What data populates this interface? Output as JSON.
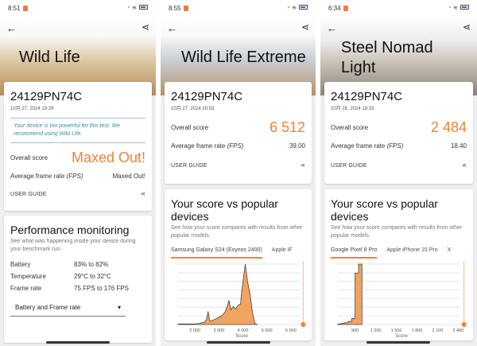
{
  "panels": [
    {
      "time": "8:51",
      "title": "Wild Life",
      "device": "24129PN74C",
      "date": "10月 27, 2024 19:29",
      "notice": "Your device is too powerful for this test. We recommend using Wild Life.",
      "overall_label": "Overall score",
      "overall_value": "Maxed Out!",
      "fps_label": "Average frame rate",
      "fps_unit": "(FPS)",
      "fps_value": "Maxed Out!",
      "user_guide": "USER GUIDE",
      "perf": {
        "title": "Performance monitoring",
        "subtitle": "See what was happening inside your device during your benchmark run.",
        "rows": [
          {
            "label": "Battery",
            "value": "83% to 82%"
          },
          {
            "label": "Temperature",
            "value": "29°C to 32°C"
          },
          {
            "label": "Frame rate",
            "value": "75 FPS to 176 FPS"
          }
        ],
        "dropdown": "Battery and Frame rate"
      }
    },
    {
      "time": "8:55",
      "title": "Wild Life Extreme",
      "device": "24129PN74C",
      "date": "10月 27, 2024 20:53",
      "overall_label": "Overall score",
      "overall_value": "6 512",
      "fps_label": "Average frame rate",
      "fps_unit": "(FPS)",
      "fps_value": "39.00",
      "user_guide": "USER GUIDE",
      "compare": {
        "title": "Your score vs popular devices",
        "subtitle": "See how your score compares with results from other popular models.",
        "tabs": [
          "Samsung Galaxy S24 (Exynos 2400)",
          "Apple iF"
        ],
        "xlabel": "Score"
      }
    },
    {
      "time": "6:34",
      "title": "Steel Nomad Light",
      "device": "24129PN74C",
      "date": "10月 28, 2024 18:33",
      "overall_label": "Overall score",
      "overall_value": "2 484",
      "fps_label": "Average frame rate",
      "fps_unit": "(FPS)",
      "fps_value": "18.40",
      "user_guide": "USER GUIDE",
      "compare": {
        "title": "Your score vs popular devices",
        "subtitle": "See how your score compares with results from other popular models.",
        "tabs": [
          "Google Pixel 8 Pro",
          "Apple iPhone 15 Pro",
          "X"
        ],
        "xlabel": "Score"
      }
    }
  ],
  "colors": {
    "accent": "#f08236",
    "notice": "#3a8c97"
  },
  "chart_data": [
    {
      "type": "area",
      "xlabel": "Score",
      "xlim": [
        1300,
        6600
      ],
      "ticks": [
        "2 000",
        "3 000",
        "4 000",
        "5 000",
        "6 000"
      ],
      "tick_values": [
        2000,
        3000,
        4000,
        5000,
        6000
      ],
      "marker": 6512,
      "x": [
        1300,
        1800,
        2000,
        2200,
        2400,
        2480,
        2550,
        2620,
        2700,
        2900,
        3100,
        3250,
        3350,
        3420,
        3500,
        3600,
        3700,
        3800,
        3900,
        3950,
        4000,
        4050,
        4100,
        4150,
        4200,
        4300,
        4400,
        4500,
        4600
      ],
      "y": [
        1,
        1,
        1,
        2,
        4,
        8,
        22,
        6,
        6,
        10,
        14,
        20,
        30,
        40,
        24,
        30,
        26,
        32,
        34,
        55,
        70,
        85,
        100,
        85,
        70,
        50,
        20,
        2,
        0
      ]
    },
    {
      "type": "bar",
      "xlabel": "Score",
      "xlim": [
        650,
        2500
      ],
      "ticks": [
        "900",
        "1 200",
        "1 500",
        "1 800",
        "2 100",
        "2 400"
      ],
      "tick_values": [
        900,
        1200,
        1500,
        1800,
        2100,
        2400
      ],
      "marker": 2484,
      "x": [
        650,
        700,
        750,
        800,
        850,
        900,
        950,
        1000
      ],
      "y": [
        1,
        2,
        3,
        5,
        10,
        85,
        100,
        0
      ]
    }
  ]
}
